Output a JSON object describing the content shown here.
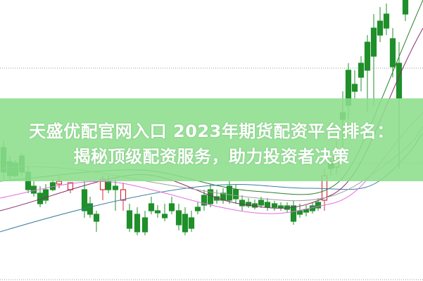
{
  "headline": {
    "line1": "天盛优配官网入口 2023年期货配资平台排名：",
    "line2": "揭秘顶级配资服务，助力投资者决策"
  },
  "colors": {
    "banner": "#8cde8c",
    "candle_up": "#d0303a",
    "candle_down": "#1f8f2a",
    "grid": "#999999",
    "ma_lines": [
      "#2a7f2a",
      "#3a7fa0",
      "#8a2a6a",
      "#e070e0",
      "#a0a0a0"
    ]
  },
  "chart_data": {
    "type": "candlestick",
    "grid": "horizontal dotted"
  }
}
